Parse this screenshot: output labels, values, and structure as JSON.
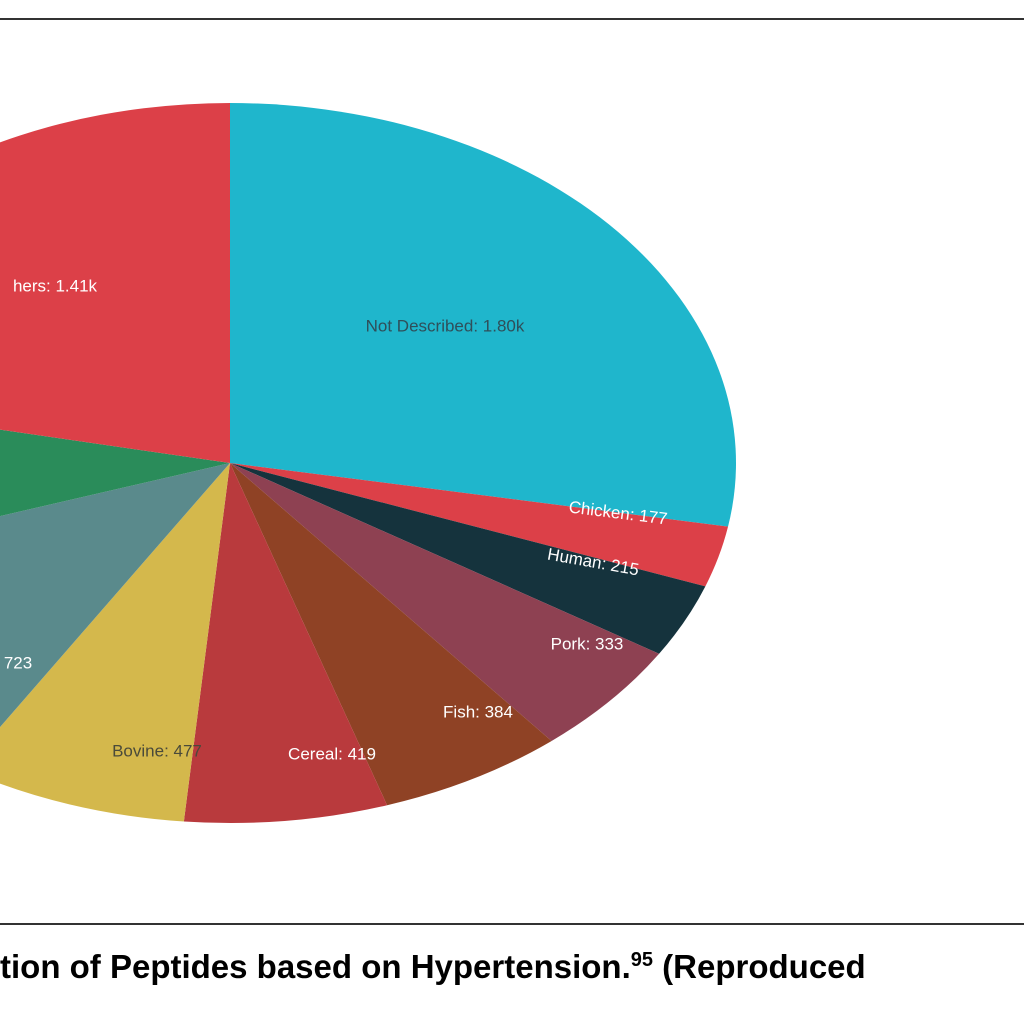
{
  "chart_data": {
    "type": "pie",
    "slices": [
      {
        "label": "Not Described: 1.80k",
        "category": "Not Described",
        "value": 1800,
        "color": "#1fb6cc",
        "text_color": "#2f4f5a"
      },
      {
        "label": "Chicken: 177",
        "category": "Chicken",
        "value": 177,
        "color": "#dc4048",
        "text_color": "#ffffff"
      },
      {
        "label": "Human: 215",
        "category": "Human",
        "value": 215,
        "color": "#15333d",
        "text_color": "#ffffff"
      },
      {
        "label": "Pork: 333",
        "category": "Pork",
        "value": 333,
        "color": "#8e4152",
        "text_color": "#ffffff"
      },
      {
        "label": "Fish: 384",
        "category": "Fish",
        "value": 384,
        "color": "#8f4225",
        "text_color": "#ffffff"
      },
      {
        "label": "Cereal: 419",
        "category": "Cereal",
        "value": 419,
        "color": "#b93a3d",
        "text_color": "#ffffff"
      },
      {
        "label": "Bovine: 477",
        "category": "Bovine",
        "value": 477,
        "color": "#d4b84c",
        "text_color": "#4a4a3a"
      },
      {
        "label": "723",
        "category": "",
        "value": 723,
        "color": "#5a8a8c",
        "text_color": "#ffffff"
      },
      {
        "label": "",
        "category": "",
        "value": 530,
        "color": "#2a8c5a",
        "text_color": "#ffffff"
      },
      {
        "label": "hers: 1.41k",
        "category": "Others",
        "value": 1410,
        "color": "#dc4048",
        "text_color": "#ffffff"
      }
    ],
    "legend": "none"
  },
  "caption": {
    "text": "tion of Peptides based on Hypertension.",
    "ref": "95",
    "suffix": " (Reproduced"
  }
}
